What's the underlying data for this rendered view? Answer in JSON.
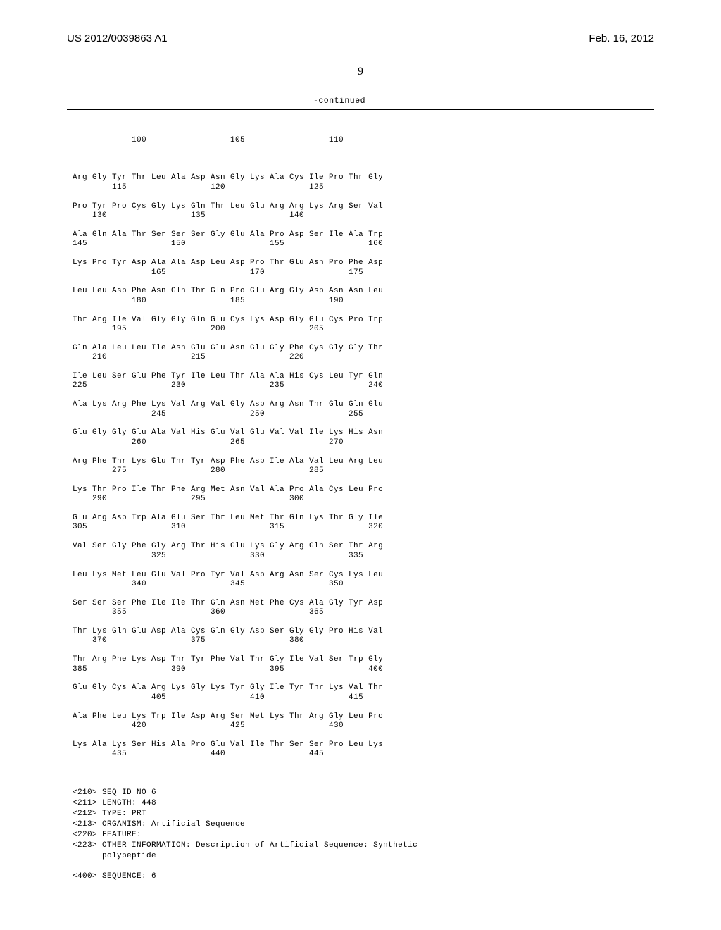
{
  "header": {
    "pub_number": "US 2012/0039863 A1",
    "date": "Feb. 16, 2012"
  },
  "page_number": "9",
  "continued_label": "-continued",
  "first_counter_line": "            100                 105                 110",
  "rows": [
    {
      "aa": "Arg Gly Tyr Thr Leu Ala Asp Asn Gly Lys Ala Cys Ile Pro Thr Gly",
      "num": "        115                 120                 125"
    },
    {
      "aa": "Pro Tyr Pro Cys Gly Lys Gln Thr Leu Glu Arg Arg Lys Arg Ser Val",
      "num": "    130                 135                 140"
    },
    {
      "aa": "Ala Gln Ala Thr Ser Ser Ser Gly Glu Ala Pro Asp Ser Ile Ala Trp",
      "num": "145                 150                 155                 160"
    },
    {
      "aa": "Lys Pro Tyr Asp Ala Ala Asp Leu Asp Pro Thr Glu Asn Pro Phe Asp",
      "num": "                165                 170                 175"
    },
    {
      "aa": "Leu Leu Asp Phe Asn Gln Thr Gln Pro Glu Arg Gly Asp Asn Asn Leu",
      "num": "            180                 185                 190"
    },
    {
      "aa": "Thr Arg Ile Val Gly Gly Gln Glu Cys Lys Asp Gly Glu Cys Pro Trp",
      "num": "        195                 200                 205"
    },
    {
      "aa": "Gln Ala Leu Leu Ile Asn Glu Glu Asn Glu Gly Phe Cys Gly Gly Thr",
      "num": "    210                 215                 220"
    },
    {
      "aa": "Ile Leu Ser Glu Phe Tyr Ile Leu Thr Ala Ala His Cys Leu Tyr Gln",
      "num": "225                 230                 235                 240"
    },
    {
      "aa": "Ala Lys Arg Phe Lys Val Arg Val Gly Asp Arg Asn Thr Glu Gln Glu",
      "num": "                245                 250                 255"
    },
    {
      "aa": "Glu Gly Gly Glu Ala Val His Glu Val Glu Val Val Ile Lys His Asn",
      "num": "            260                 265                 270"
    },
    {
      "aa": "Arg Phe Thr Lys Glu Thr Tyr Asp Phe Asp Ile Ala Val Leu Arg Leu",
      "num": "        275                 280                 285"
    },
    {
      "aa": "Lys Thr Pro Ile Thr Phe Arg Met Asn Val Ala Pro Ala Cys Leu Pro",
      "num": "    290                 295                 300"
    },
    {
      "aa": "Glu Arg Asp Trp Ala Glu Ser Thr Leu Met Thr Gln Lys Thr Gly Ile",
      "num": "305                 310                 315                 320"
    },
    {
      "aa": "Val Ser Gly Phe Gly Arg Thr His Glu Lys Gly Arg Gln Ser Thr Arg",
      "num": "                325                 330                 335"
    },
    {
      "aa": "Leu Lys Met Leu Glu Val Pro Tyr Val Asp Arg Asn Ser Cys Lys Leu",
      "num": "            340                 345                 350"
    },
    {
      "aa": "Ser Ser Ser Phe Ile Ile Thr Gln Asn Met Phe Cys Ala Gly Tyr Asp",
      "num": "        355                 360                 365"
    },
    {
      "aa": "Thr Lys Gln Glu Asp Ala Cys Gln Gly Asp Ser Gly Gly Pro His Val",
      "num": "    370                 375                 380"
    },
    {
      "aa": "Thr Arg Phe Lys Asp Thr Tyr Phe Val Thr Gly Ile Val Ser Trp Gly",
      "num": "385                 390                 395                 400"
    },
    {
      "aa": "Glu Gly Cys Ala Arg Lys Gly Lys Tyr Gly Ile Tyr Thr Lys Val Thr",
      "num": "                405                 410                 415"
    },
    {
      "aa": "Ala Phe Leu Lys Trp Ile Asp Arg Ser Met Lys Thr Arg Gly Leu Pro",
      "num": "            420                 425                 430"
    },
    {
      "aa": "Lys Ala Lys Ser His Ala Pro Glu Val Ile Thr Ser Ser Pro Leu Lys",
      "num": "        435                 440                 445"
    }
  ],
  "footer_lines": [
    "<210> SEQ ID NO 6",
    "<211> LENGTH: 448",
    "<212> TYPE: PRT",
    "<213> ORGANISM: Artificial Sequence",
    "<220> FEATURE:",
    "<223> OTHER INFORMATION: Description of Artificial Sequence: Synthetic",
    "      polypeptide",
    "",
    "<400> SEQUENCE: 6"
  ]
}
